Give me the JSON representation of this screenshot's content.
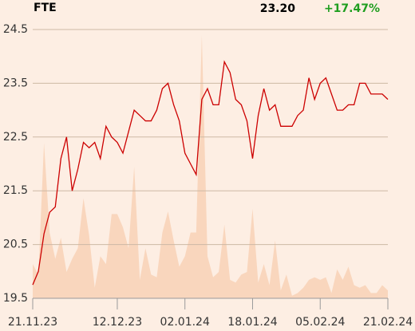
{
  "chart_data": {
    "type": "line",
    "title": "FTE",
    "price": "23.20",
    "change": "+17.47%",
    "categories": [
      "21.11.23",
      null,
      null,
      null,
      null,
      null,
      null,
      null,
      null,
      null,
      null,
      null,
      null,
      null,
      null,
      "12.12.23",
      null,
      null,
      null,
      null,
      null,
      null,
      null,
      null,
      null,
      null,
      null,
      "02.01.24",
      null,
      null,
      null,
      null,
      null,
      null,
      null,
      null,
      null,
      null,
      null,
      "18.01.24",
      null,
      null,
      null,
      null,
      null,
      null,
      null,
      null,
      null,
      null,
      null,
      "05.02.24",
      null,
      null,
      null,
      null,
      null,
      null,
      null,
      null,
      null,
      null,
      null,
      "21.02.24"
    ],
    "series": [
      {
        "color": "#cc0000",
        "values": [
          19.75,
          20.0,
          20.7,
          21.1,
          21.2,
          22.1,
          22.5,
          21.5,
          21.9,
          22.4,
          22.3,
          22.4,
          22.1,
          22.7,
          22.5,
          22.4,
          22.2,
          22.6,
          23.0,
          22.9,
          22.8,
          22.8,
          23.0,
          23.4,
          23.5,
          23.1,
          22.8,
          22.2,
          22.0,
          21.8,
          23.2,
          23.4,
          23.1,
          23.1,
          23.9,
          23.7,
          23.2,
          23.1,
          22.8,
          22.1,
          22.9,
          23.4,
          23.0,
          23.1,
          22.7,
          22.7,
          22.7,
          22.9,
          23.0,
          23.6,
          23.2,
          23.5,
          23.6,
          23.3,
          23.0,
          23.0,
          23.1,
          23.1,
          23.5,
          23.5,
          23.3,
          23.3,
          23.3,
          23.2
        ]
      }
    ],
    "volume": {
      "color": "#f9d6bd",
      "values": [
        13,
        9,
        59,
        25,
        15,
        23,
        10,
        15,
        19,
        38,
        24,
        4,
        16,
        13,
        32,
        32,
        27,
        19,
        50,
        7,
        19,
        9,
        8,
        25,
        33,
        22,
        12,
        16,
        25,
        25,
        100,
        16,
        8,
        10,
        28,
        7,
        6,
        9,
        10,
        34,
        6,
        13,
        5,
        22,
        3,
        9,
        1,
        2,
        4,
        7,
        8,
        7,
        8,
        2,
        11,
        7,
        12,
        5,
        4,
        5,
        2,
        2,
        5,
        3
      ]
    },
    "ylim": [
      19.5,
      24.5
    ],
    "yticks": [
      19.5,
      20.5,
      21.5,
      22.5,
      23.5,
      24.5
    ],
    "grid": true
  }
}
